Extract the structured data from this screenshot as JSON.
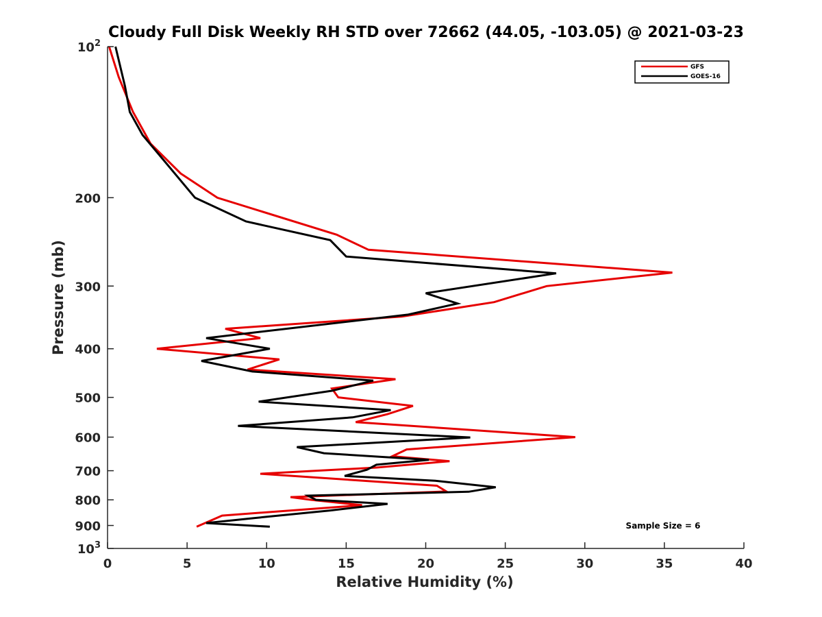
{
  "chart_data": {
    "type": "line",
    "title": "Cloudy Full Disk Weekly RH STD over 72662 (44.05, -103.05) @ 2021-03-23",
    "xlabel": "Relative Humidity (%)",
    "ylabel": "Pressure (mb)",
    "xlim": [
      0,
      40
    ],
    "ylim": [
      100,
      1000
    ],
    "y_scale": "log",
    "y_reversed": true,
    "grid": false,
    "legend_position": "top-right",
    "x_ticks": [
      "0",
      "5",
      "10",
      "15",
      "20",
      "25",
      "30",
      "35",
      "40"
    ],
    "y_ticks": [
      {
        "value": 100,
        "base": "10",
        "exp": "2"
      },
      {
        "value": 200,
        "label": "200"
      },
      {
        "value": 300,
        "label": "300"
      },
      {
        "value": 400,
        "label": "400"
      },
      {
        "value": 500,
        "label": "500"
      },
      {
        "value": 600,
        "label": "600"
      },
      {
        "value": 700,
        "label": "700"
      },
      {
        "value": 800,
        "label": "800"
      },
      {
        "value": 900,
        "label": "900"
      },
      {
        "value": 1000,
        "base": "10",
        "exp": "3"
      }
    ],
    "annotation": "Sample Size = 6",
    "series": [
      {
        "name": "GFS",
        "color": "#e60000",
        "points": [
          [
            0.1,
            100
          ],
          [
            0.7,
            115
          ],
          [
            1.6,
            135
          ],
          [
            2.7,
            156
          ],
          [
            4.6,
            179
          ],
          [
            6.9,
            200
          ],
          [
            14.4,
            237
          ],
          [
            16.4,
            254
          ],
          [
            35.5,
            282
          ],
          [
            27.6,
            300
          ],
          [
            24.3,
            323
          ],
          [
            18.5,
            345
          ],
          [
            7.4,
            365
          ],
          [
            9.6,
            381
          ],
          [
            3.1,
            400
          ],
          [
            10.8,
            420
          ],
          [
            8.8,
            440
          ],
          [
            18.1,
            460
          ],
          [
            14.1,
            480
          ],
          [
            14.5,
            500
          ],
          [
            19.2,
            520
          ],
          [
            17.6,
            540
          ],
          [
            15.6,
            560
          ],
          [
            29.4,
            600
          ],
          [
            18.8,
            635
          ],
          [
            17.9,
            655
          ],
          [
            21.5,
            670
          ],
          [
            16.9,
            690
          ],
          [
            9.6,
            710
          ],
          [
            20.7,
            750
          ],
          [
            21.3,
            770
          ],
          [
            11.5,
            790
          ],
          [
            12.8,
            800
          ],
          [
            16.0,
            820
          ],
          [
            7.2,
            860
          ],
          [
            5.6,
            905
          ]
        ]
      },
      {
        "name": "GOES-16",
        "color": "#000000",
        "points": [
          [
            0.5,
            100
          ],
          [
            1.1,
            120
          ],
          [
            1.4,
            135
          ],
          [
            2.2,
            150
          ],
          [
            3.5,
            168
          ],
          [
            5.5,
            200
          ],
          [
            8.7,
            223
          ],
          [
            14.0,
            243
          ],
          [
            15.0,
            262
          ],
          [
            28.2,
            283
          ],
          [
            20.0,
            310
          ],
          [
            22.0,
            325
          ],
          [
            18.9,
            342
          ],
          [
            6.2,
            381
          ],
          [
            10.2,
            400
          ],
          [
            5.9,
            423
          ],
          [
            9.1,
            444
          ],
          [
            16.7,
            463
          ],
          [
            14.1,
            485
          ],
          [
            9.5,
            510
          ],
          [
            17.8,
            530
          ],
          [
            15.4,
            548
          ],
          [
            8.2,
            570
          ],
          [
            22.8,
            601
          ],
          [
            11.9,
            628
          ],
          [
            13.6,
            646
          ],
          [
            20.2,
            666
          ],
          [
            16.9,
            681
          ],
          [
            16.3,
            697
          ],
          [
            14.9,
            717
          ],
          [
            20.6,
            733
          ],
          [
            24.4,
            755
          ],
          [
            22.7,
            771
          ],
          [
            12.6,
            785
          ],
          [
            13.1,
            800
          ],
          [
            17.6,
            815
          ],
          [
            14.0,
            840
          ],
          [
            9.2,
            870
          ],
          [
            6.2,
            890
          ],
          [
            10.2,
            905
          ]
        ]
      }
    ]
  }
}
